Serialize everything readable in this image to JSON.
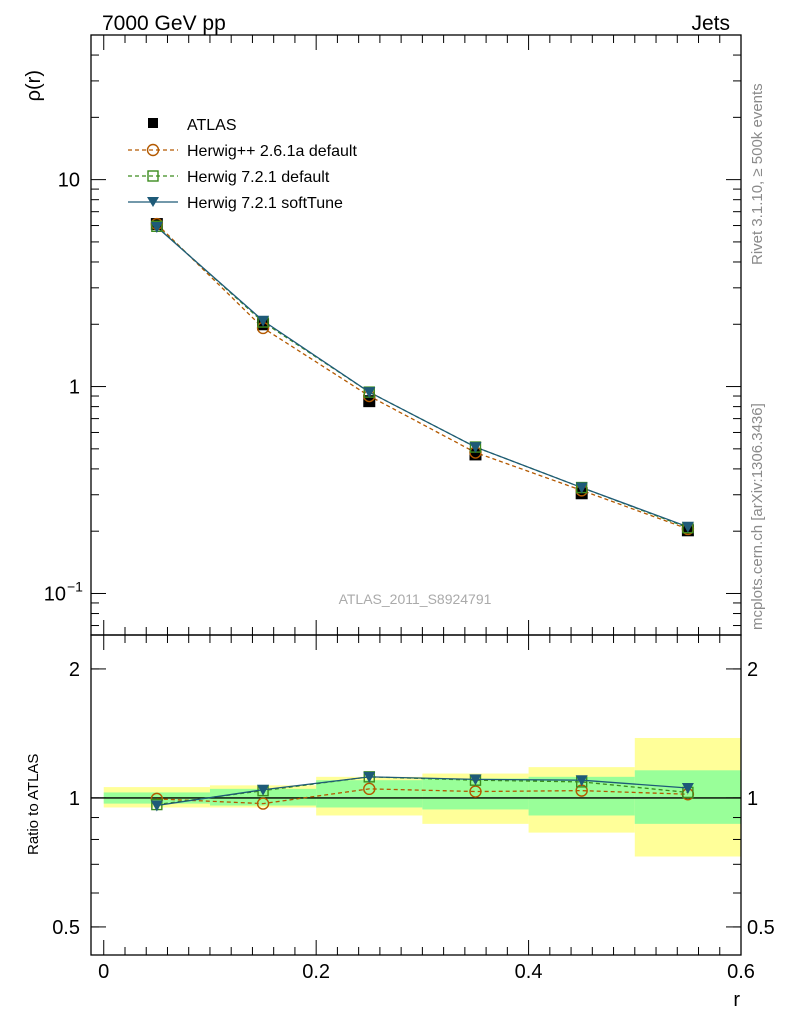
{
  "header": {
    "left": "7000 GeV pp",
    "right": "Jets"
  },
  "side_text": {
    "rivet": "Rivet 3.1.10, ≥ 500k events",
    "source": "mcplots.cern.ch [arXiv:1306.3436]"
  },
  "watermark": "ATLAS_2011_S8924791",
  "colors": {
    "atlas": "#000000",
    "herwigpp": "#b35900",
    "herwig721": "#3c8c1e",
    "softtune": "#1e5a78",
    "band_outer": "#ffff99",
    "band_inner": "#99ff99"
  },
  "chart_data": [
    {
      "type": "line",
      "panel": "main",
      "ylabel": "ρ(r)",
      "yscale": "log",
      "ylim": [
        0.063,
        50
      ],
      "xlim": [
        -0.012,
        0.6
      ],
      "yticks": [
        {
          "v": 0.1,
          "base": "10",
          "exp": "−1"
        },
        {
          "v": 1,
          "base": "1",
          "exp": ""
        },
        {
          "v": 10,
          "base": "10",
          "exp": ""
        }
      ],
      "legend": [
        "ATLAS",
        "Herwig++ 2.6.1a default",
        "Herwig 7.2.1 default",
        "Herwig 7.2.1 softTune"
      ],
      "legend_position": "top-left",
      "x": [
        0.05,
        0.15,
        0.25,
        0.35,
        0.45,
        0.55
      ],
      "series": [
        {
          "name": "ATLAS",
          "values": [
            6.1,
            2.0,
            0.85,
            0.47,
            0.305,
            0.202
          ],
          "marker": "square-filled",
          "line": "none"
        },
        {
          "name": "Herwig++ 2.6.1a default",
          "values": [
            6.1,
            1.92,
            0.9,
            0.48,
            0.315,
            0.205
          ],
          "marker": "circle-open",
          "line": "dashed"
        },
        {
          "name": "Herwig 7.2.1 default",
          "values": [
            5.95,
            2.05,
            0.94,
            0.51,
            0.325,
            0.208
          ],
          "marker": "square-open",
          "line": "dashed"
        },
        {
          "name": "Herwig 7.2.1 softTune",
          "values": [
            5.9,
            2.08,
            0.94,
            0.51,
            0.325,
            0.21
          ],
          "marker": "triangle-down-filled",
          "line": "solid"
        }
      ]
    },
    {
      "type": "line",
      "panel": "ratio",
      "ylabel": "Ratio to ATLAS",
      "xlabel": "r",
      "yscale": "log",
      "ylim": [
        0.43,
        2.4
      ],
      "xlim": [
        -0.012,
        0.6
      ],
      "yticks": [
        {
          "v": 0.5,
          "label": "0.5"
        },
        {
          "v": 1,
          "label": "1"
        },
        {
          "v": 2,
          "label": "2"
        }
      ],
      "xticks": [
        {
          "v": 0,
          "label": "0"
        },
        {
          "v": 0.2,
          "label": "0.2"
        },
        {
          "v": 0.4,
          "label": "0.4"
        },
        {
          "v": 0.6,
          "label": "0.6"
        }
      ],
      "x": [
        0.05,
        0.15,
        0.25,
        0.35,
        0.45,
        0.55
      ],
      "bands": {
        "bins": [
          [
            0,
            0.1
          ],
          [
            0.1,
            0.2
          ],
          [
            0.2,
            0.3
          ],
          [
            0.3,
            0.4
          ],
          [
            0.4,
            0.5
          ],
          [
            0.5,
            0.6
          ]
        ],
        "outer": [
          [
            0.95,
            1.06
          ],
          [
            0.95,
            1.07
          ],
          [
            0.91,
            1.12
          ],
          [
            0.87,
            1.14
          ],
          [
            0.83,
            1.18
          ],
          [
            0.73,
            1.38
          ]
        ],
        "inner": [
          [
            0.97,
            1.03
          ],
          [
            0.96,
            1.05
          ],
          [
            0.95,
            1.1
          ],
          [
            0.94,
            1.11
          ],
          [
            0.91,
            1.12
          ],
          [
            0.87,
            1.16
          ]
        ]
      },
      "series": [
        {
          "name": "Herwig++ 2.6.1a default",
          "values": [
            0.995,
            0.97,
            1.05,
            1.035,
            1.04,
            1.02
          ]
        },
        {
          "name": "Herwig 7.2.1 default",
          "values": [
            0.965,
            1.04,
            1.12,
            1.1,
            1.09,
            1.03
          ]
        },
        {
          "name": "Herwig 7.2.1 softTune",
          "values": [
            0.96,
            1.045,
            1.12,
            1.105,
            1.1,
            1.055
          ]
        }
      ]
    }
  ]
}
